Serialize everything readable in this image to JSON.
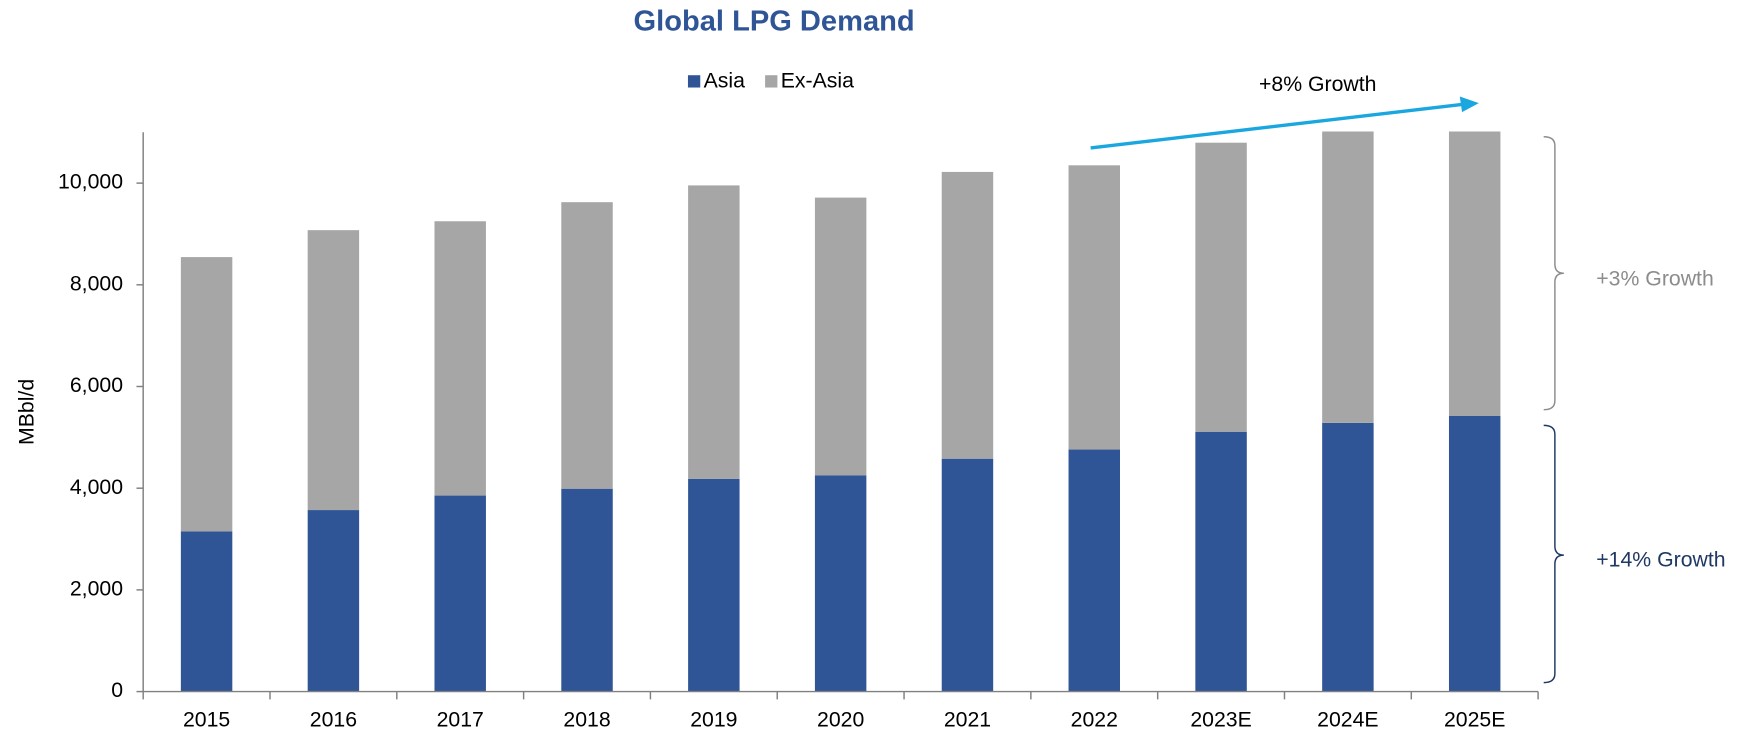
{
  "chart_data": {
    "type": "stacked_bar",
    "title": "Global LPG Demand",
    "y_label": "MBbl/d",
    "categories": [
      "2015",
      "2016",
      "2017",
      "2018",
      "2019",
      "2020",
      "2021",
      "2022",
      "2023E",
      "2024E",
      "2025E"
    ],
    "series": [
      {
        "name": "Asia",
        "color": "#2f5597",
        "values": [
          3150,
          3570,
          3855,
          3990,
          4185,
          4250,
          4580,
          4760,
          5110,
          5285,
          5420
        ]
      },
      {
        "name": "Ex-Asia",
        "color": "#a6a6a6",
        "values": [
          5395,
          5505,
          5395,
          5635,
          5770,
          5465,
          5640,
          5590,
          5685,
          5730,
          5595
        ]
      }
    ],
    "ylim": [
      0,
      11000
    ],
    "yticks": [
      0,
      {
        "value": 2000,
        "label": "2,000"
      },
      {
        "value": 4000,
        "label": "4,000"
      },
      {
        "value": 6000,
        "label": "6,000"
      },
      {
        "value": 8000,
        "label": "8,000"
      },
      {
        "value": 10000,
        "label": "10,000"
      }
    ],
    "annotations": [
      "+8% Growth",
      "+3% Growth",
      "+14% Growth"
    ]
  }
}
